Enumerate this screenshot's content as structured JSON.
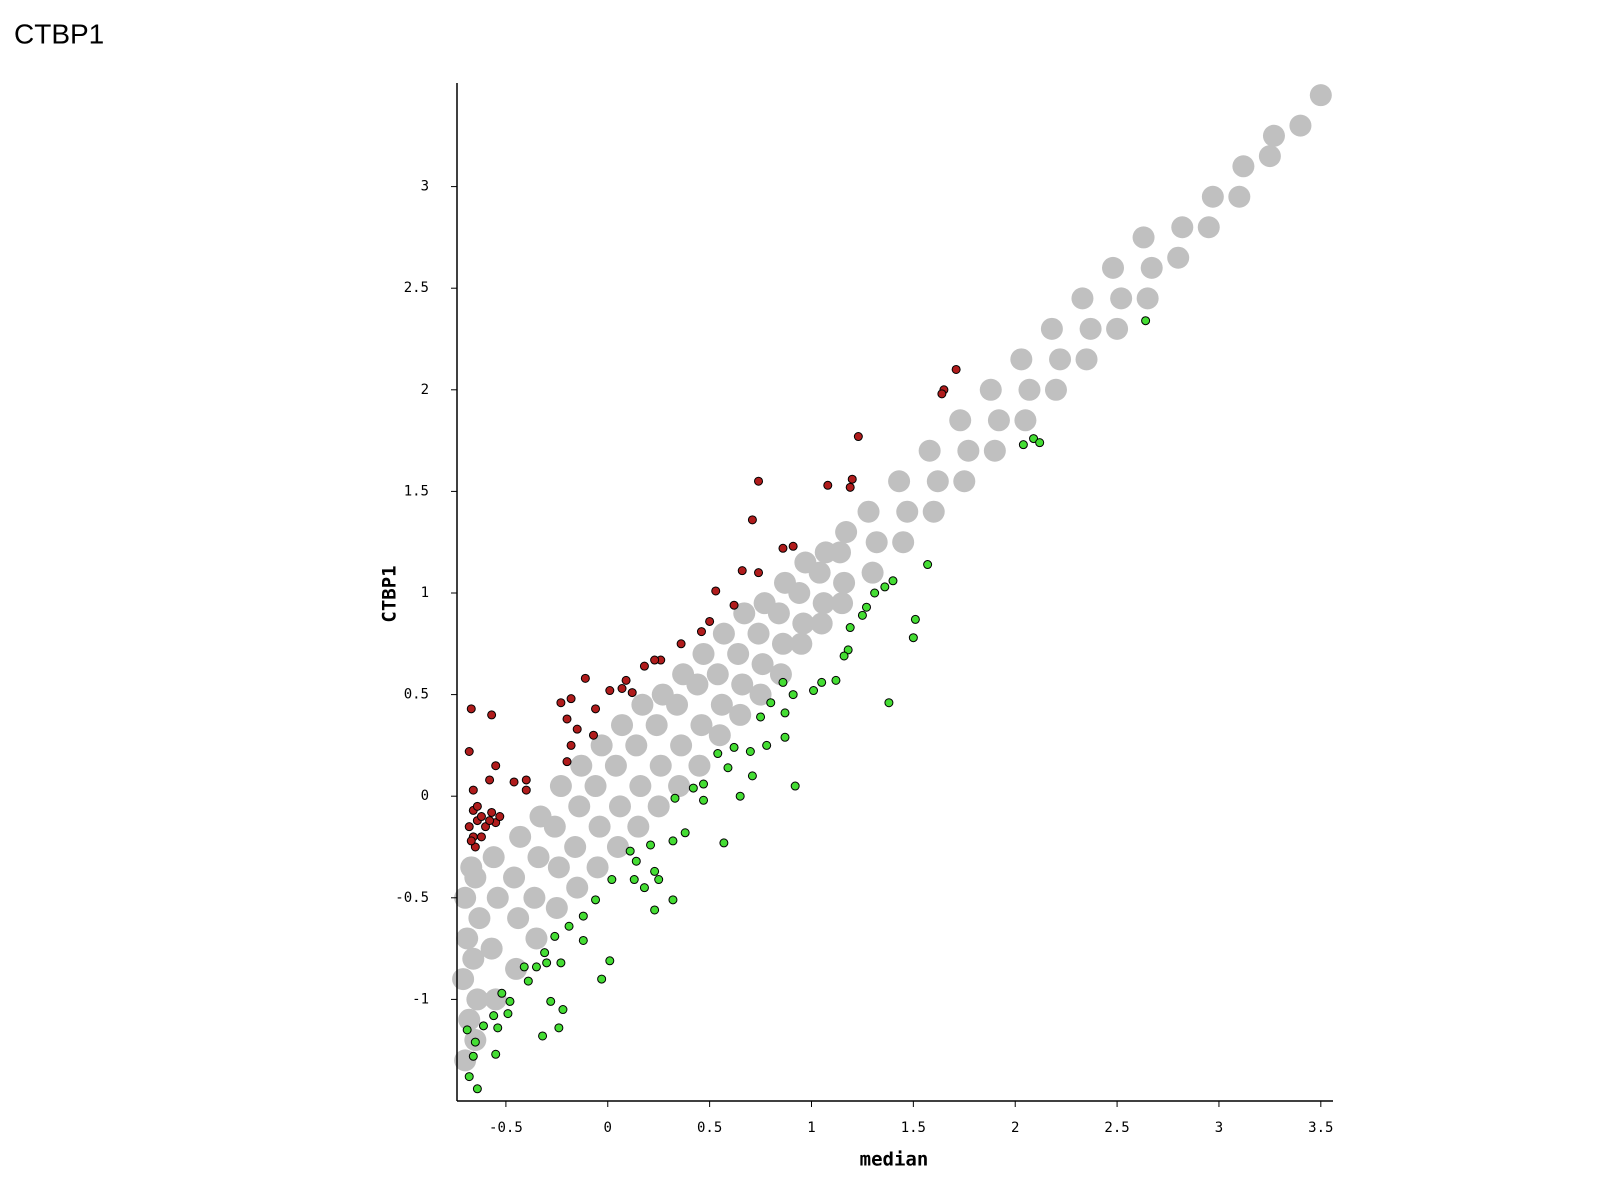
{
  "chart_data": {
    "type": "scatter",
    "title": "CTBP1",
    "xlabel": "median",
    "ylabel": "CTBP1",
    "xlim": [
      -0.74,
      3.55
    ],
    "ylim": [
      -1.5,
      3.5
    ],
    "xticks": [
      -0.5,
      0,
      0.5,
      1,
      1.5,
      2,
      2.5,
      3,
      3.5
    ],
    "yticks": [
      -1,
      -0.5,
      0,
      0.5,
      1,
      1.5,
      2,
      2.5,
      3
    ],
    "grid": false,
    "series": [
      {
        "color": "#c0c0c0",
        "edgecolor": null,
        "x": [
          -0.7,
          -0.68,
          -0.71,
          -0.69,
          -0.7,
          -0.67,
          -0.65,
          -0.64,
          -0.66,
          -0.63,
          -0.65,
          -0.55,
          -0.57,
          -0.54,
          -0.56,
          -0.45,
          -0.44,
          -0.46,
          -0.43,
          -0.35,
          -0.36,
          -0.34,
          -0.33,
          -0.25,
          -0.24,
          -0.26,
          -0.23,
          -0.15,
          -0.16,
          -0.14,
          -0.13,
          -0.05,
          -0.04,
          -0.06,
          -0.03,
          0.05,
          0.06,
          0.04,
          0.07,
          0.15,
          0.16,
          0.14,
          0.17,
          0.25,
          0.26,
          0.24,
          0.27,
          0.35,
          0.36,
          0.34,
          0.37,
          0.45,
          0.46,
          0.44,
          0.47,
          0.55,
          0.56,
          0.54,
          0.57,
          0.65,
          0.66,
          0.64,
          0.67,
          0.75,
          0.76,
          0.74,
          0.77,
          0.85,
          0.86,
          0.84,
          0.87,
          0.95,
          0.96,
          0.94,
          0.97,
          1.05,
          1.06,
          1.04,
          1.07,
          1.15,
          1.16,
          1.14,
          1.17,
          1.3,
          1.32,
          1.28,
          1.45,
          1.47,
          1.43,
          1.6,
          1.62,
          1.58,
          1.75,
          1.77,
          1.73,
          1.9,
          1.92,
          1.88,
          2.05,
          2.07,
          2.03,
          2.2,
          2.22,
          2.18,
          2.35,
          2.37,
          2.33,
          2.5,
          2.52,
          2.48,
          2.65,
          2.67,
          2.63,
          2.8,
          2.82,
          2.95,
          2.97,
          3.1,
          3.12,
          3.25,
          3.27,
          3.4,
          3.5
        ],
        "values": [
          -1.3,
          -1.1,
          -0.9,
          -0.7,
          -0.5,
          -0.35,
          -1.2,
          -1.0,
          -0.8,
          -0.6,
          -0.4,
          -1.0,
          -0.75,
          -0.5,
          -0.3,
          -0.85,
          -0.6,
          -0.4,
          -0.2,
          -0.7,
          -0.5,
          -0.3,
          -0.1,
          -0.55,
          -0.35,
          -0.15,
          0.05,
          -0.45,
          -0.25,
          -0.05,
          0.15,
          -0.35,
          -0.15,
          0.05,
          0.25,
          -0.25,
          -0.05,
          0.15,
          0.35,
          -0.15,
          0.05,
          0.25,
          0.45,
          -0.05,
          0.15,
          0.35,
          0.5,
          0.05,
          0.25,
          0.45,
          0.6,
          0.15,
          0.35,
          0.55,
          0.7,
          0.3,
          0.45,
          0.6,
          0.8,
          0.4,
          0.55,
          0.7,
          0.9,
          0.5,
          0.65,
          0.8,
          0.95,
          0.6,
          0.75,
          0.9,
          1.05,
          0.75,
          0.85,
          1.0,
          1.15,
          0.85,
          0.95,
          1.1,
          1.2,
          0.95,
          1.05,
          1.2,
          1.3,
          1.1,
          1.25,
          1.4,
          1.25,
          1.4,
          1.55,
          1.4,
          1.55,
          1.7,
          1.55,
          1.7,
          1.85,
          1.7,
          1.85,
          2.0,
          1.85,
          2.0,
          2.15,
          2.0,
          2.15,
          2.3,
          2.15,
          2.3,
          2.45,
          2.3,
          2.45,
          2.6,
          2.45,
          2.6,
          2.75,
          2.65,
          2.8,
          2.8,
          2.95,
          2.95,
          3.1,
          3.15,
          3.25,
          3.3,
          3.45
        ]
      },
      {
        "color": "#b01c1c",
        "edgecolor": "#000000",
        "x": [
          1.71,
          1.65,
          1.64,
          1.23,
          0.74,
          1.08,
          1.2,
          1.19,
          0.71,
          0.86,
          0.91,
          0.66,
          0.74,
          0.53,
          0.62,
          0.5,
          0.46,
          0.36,
          0.26,
          0.23,
          0.18,
          -0.11,
          0.09,
          0.01,
          0.07,
          0.12,
          -0.18,
          -0.23,
          -0.06,
          -0.67,
          -0.57,
          -0.2,
          -0.15,
          -0.07,
          -0.18,
          -0.68,
          -0.2,
          -0.55,
          -0.66,
          -0.46,
          -0.4,
          -0.4,
          -0.58,
          -0.66,
          -0.64,
          -0.62,
          -0.6,
          -0.57,
          -0.55,
          -0.66,
          -0.65,
          -0.62,
          -0.68,
          -0.64,
          -0.58,
          -0.53,
          -0.67
        ],
        "values": [
          2.1,
          2.0,
          1.98,
          1.77,
          1.55,
          1.53,
          1.56,
          1.52,
          1.36,
          1.22,
          1.23,
          1.11,
          1.1,
          1.01,
          0.94,
          0.86,
          0.81,
          0.75,
          0.67,
          0.67,
          0.64,
          0.58,
          0.57,
          0.52,
          0.53,
          0.51,
          0.48,
          0.46,
          0.43,
          0.43,
          0.4,
          0.38,
          0.33,
          0.3,
          0.25,
          0.22,
          0.17,
          0.15,
          0.03,
          0.07,
          0.08,
          0.03,
          0.08,
          -0.07,
          -0.12,
          -0.1,
          -0.15,
          -0.08,
          -0.13,
          -0.2,
          -0.25,
          -0.2,
          -0.15,
          -0.05,
          -0.12,
          -0.1,
          -0.22
        ]
      },
      {
        "color": "#44dd33",
        "edgecolor": "#000000",
        "x": [
          2.64,
          2.04,
          2.09,
          2.12,
          1.57,
          1.4,
          1.36,
          1.31,
          1.51,
          1.5,
          1.27,
          1.25,
          1.19,
          1.18,
          1.16,
          1.38,
          1.05,
          1.12,
          1.01,
          0.91,
          0.86,
          0.87,
          0.8,
          0.75,
          0.87,
          0.78,
          0.7,
          0.62,
          0.54,
          0.59,
          0.71,
          0.92,
          0.65,
          0.47,
          0.42,
          0.47,
          0.33,
          0.38,
          0.57,
          0.32,
          0.21,
          0.11,
          0.14,
          0.23,
          0.25,
          0.18,
          0.13,
          0.32,
          0.23,
          0.02,
          -0.06,
          -0.12,
          -0.19,
          -0.12,
          -0.26,
          -0.31,
          -0.3,
          0.01,
          -0.03,
          -0.23,
          -0.35,
          -0.41,
          -0.39,
          -0.22,
          -0.28,
          -0.24,
          -0.32,
          -0.48,
          -0.49,
          -0.56,
          -0.54,
          -0.61,
          -0.65,
          -0.55,
          -0.66,
          -0.68,
          -0.64,
          -0.69,
          -0.52
        ],
        "values": [
          2.34,
          1.73,
          1.76,
          1.74,
          1.14,
          1.06,
          1.03,
          1.0,
          0.87,
          0.78,
          0.93,
          0.89,
          0.83,
          0.72,
          0.69,
          0.46,
          0.56,
          0.57,
          0.52,
          0.5,
          0.56,
          0.41,
          0.46,
          0.39,
          0.29,
          0.25,
          0.22,
          0.24,
          0.21,
          0.14,
          0.1,
          0.05,
          0.0,
          0.06,
          0.04,
          -0.02,
          -0.01,
          -0.18,
          -0.23,
          -0.22,
          -0.24,
          -0.27,
          -0.32,
          -0.37,
          -0.41,
          -0.45,
          -0.41,
          -0.51,
          -0.56,
          -0.41,
          -0.51,
          -0.59,
          -0.64,
          -0.71,
          -0.69,
          -0.77,
          -0.82,
          -0.81,
          -0.9,
          -0.82,
          -0.84,
          -0.84,
          -0.91,
          -1.05,
          -1.01,
          -1.14,
          -1.18,
          -1.01,
          -1.07,
          -1.08,
          -1.14,
          -1.13,
          -1.21,
          -1.27,
          -1.28,
          -1.38,
          -1.44,
          -1.15,
          -0.97
        ]
      }
    ]
  }
}
